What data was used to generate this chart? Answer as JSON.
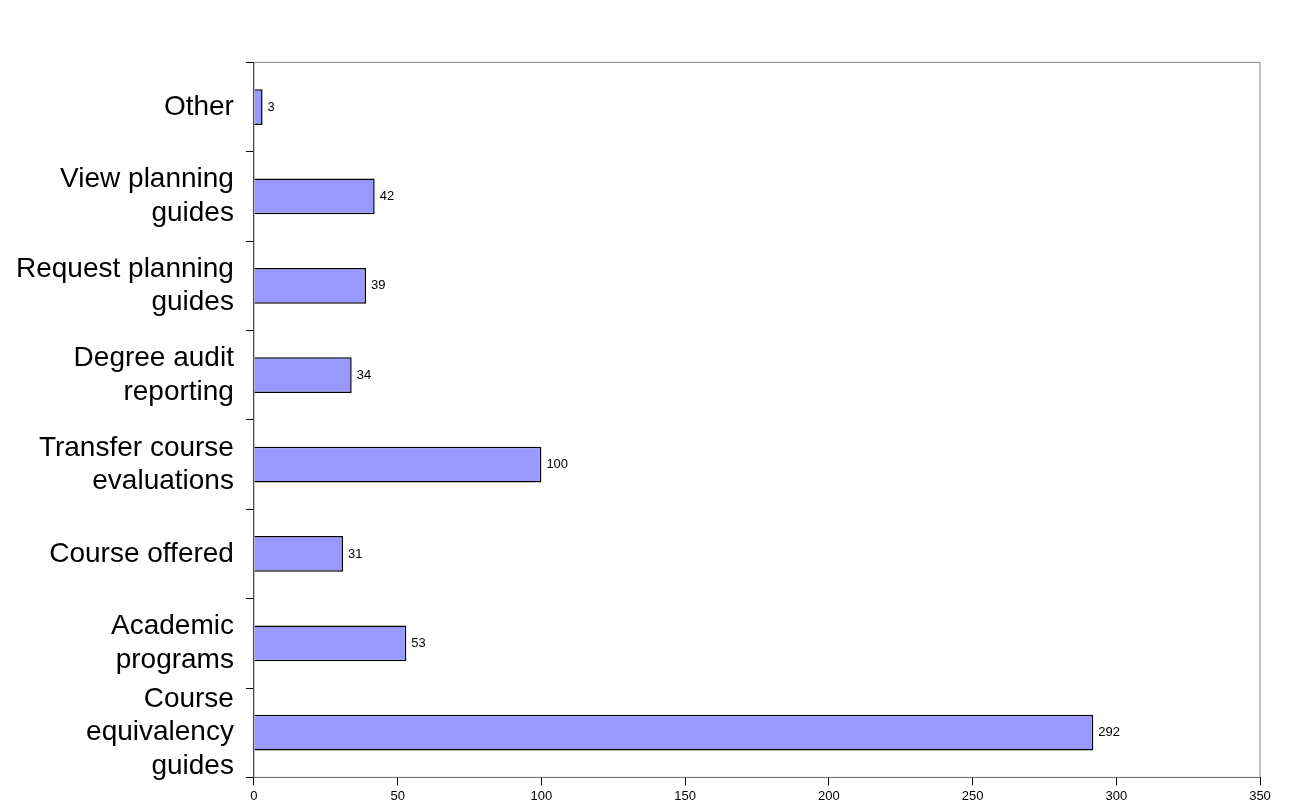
{
  "chart_data": {
    "type": "bar",
    "orientation": "horizontal",
    "categories": [
      "Other",
      "View planning guides",
      "Request planning guides",
      "Degree audit reporting",
      "Transfer course evaluations",
      "Course offered",
      "Academic programs",
      "Course equivalency guides"
    ],
    "values": [
      3,
      42,
      39,
      34,
      100,
      31,
      53,
      292
    ],
    "color": "#9999ff",
    "xlim": [
      0,
      350
    ],
    "xticks": [
      0,
      50,
      100,
      150,
      200,
      250,
      300,
      350
    ],
    "data_labels": true,
    "grid": false,
    "legend": false
  }
}
